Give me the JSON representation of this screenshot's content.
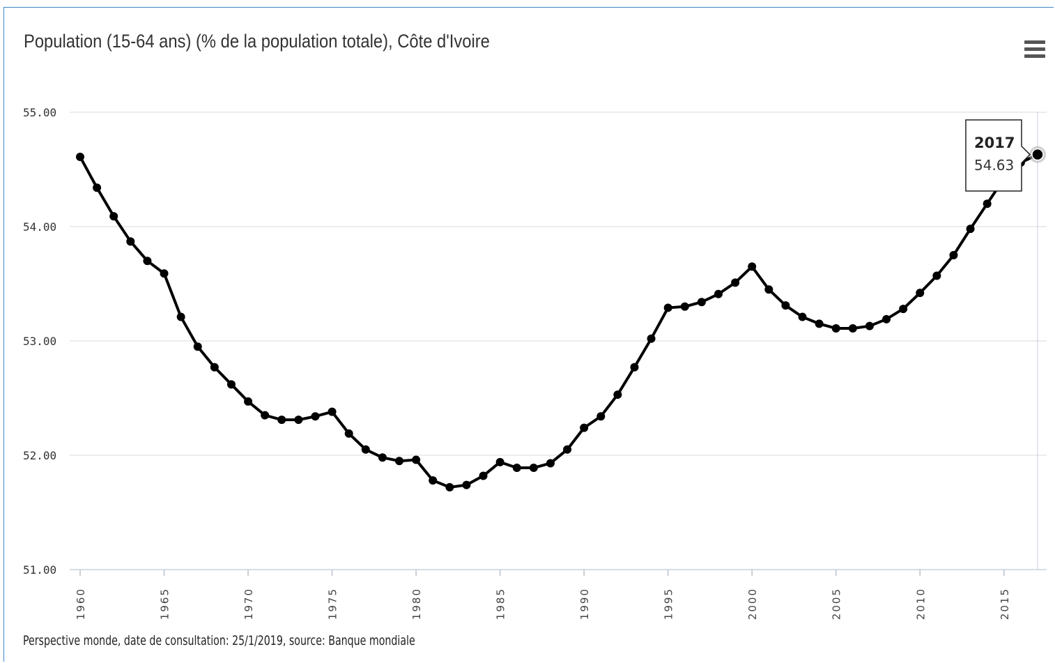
{
  "chart_data": {
    "type": "line",
    "title": "Population (15-64 ans) (% de la population totale), Côte d'Ivoire",
    "xlabel": "",
    "ylabel": "",
    "ylim": [
      51,
      55
    ],
    "xlim": [
      1960,
      2017
    ],
    "y_ticks": [
      "51.00",
      "52.00",
      "53.00",
      "54.00",
      "55.00"
    ],
    "x_ticks": [
      "1960",
      "1965",
      "1970",
      "1975",
      "1980",
      "1985",
      "1990",
      "1995",
      "2000",
      "2005",
      "2010",
      "2015"
    ],
    "grid": true,
    "legend": "none",
    "series": [
      {
        "color": "#000000",
        "x": [
          1960,
          1961,
          1962,
          1963,
          1964,
          1965,
          1966,
          1967,
          1968,
          1969,
          1970,
          1971,
          1972,
          1973,
          1974,
          1975,
          1976,
          1977,
          1978,
          1979,
          1980,
          1981,
          1982,
          1983,
          1984,
          1985,
          1986,
          1987,
          1988,
          1989,
          1990,
          1991,
          1992,
          1993,
          1994,
          1995,
          1996,
          1997,
          1998,
          1999,
          2000,
          2001,
          2002,
          2003,
          2004,
          2005,
          2006,
          2007,
          2008,
          2009,
          2010,
          2011,
          2012,
          2013,
          2014,
          2015,
          2016,
          2017
        ],
        "values": [
          54.61,
          54.34,
          54.09,
          53.87,
          53.7,
          53.59,
          53.21,
          52.95,
          52.77,
          52.62,
          52.47,
          52.35,
          52.31,
          52.31,
          52.34,
          52.38,
          52.19,
          52.05,
          51.98,
          51.95,
          51.96,
          51.78,
          51.72,
          51.74,
          51.82,
          51.94,
          51.89,
          51.89,
          51.93,
          52.05,
          52.24,
          52.34,
          52.53,
          52.77,
          53.02,
          53.29,
          53.3,
          53.34,
          53.41,
          53.51,
          53.65,
          53.45,
          53.31,
          53.21,
          53.15,
          53.11,
          53.11,
          53.13,
          53.19,
          53.28,
          53.42,
          53.57,
          53.75,
          53.98,
          54.2,
          54.42,
          54.56,
          54.63
        ]
      }
    ],
    "tooltip": {
      "year": "2017",
      "value": "54.63"
    },
    "source": "Perspective monde, date de consultation: 25/1/2019, source: Banque mondiale"
  }
}
